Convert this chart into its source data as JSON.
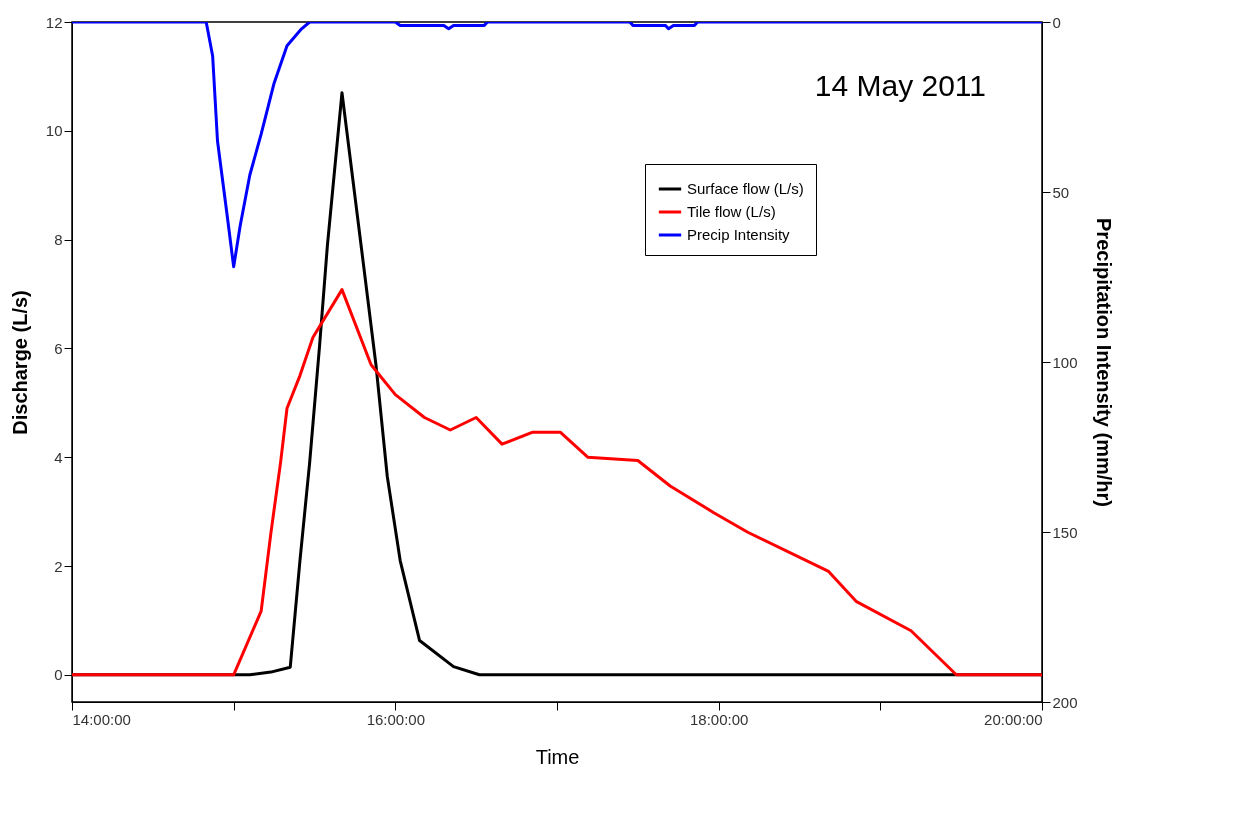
{
  "chart_data": {
    "type": "line",
    "xlabel": "Time",
    "ylabel": "Discharge (L/s)",
    "y2label": "Precipitation Intensity (mm/hr)",
    "annotations": [
      "14 May 2011"
    ],
    "xlim": [
      14,
      20
    ],
    "xticks": [
      {
        "value": 14,
        "label": "14:00:00"
      },
      {
        "value": 15,
        "label": null
      },
      {
        "value": 16,
        "label": "16:00:00"
      },
      {
        "value": 17,
        "label": null
      },
      {
        "value": 18,
        "label": "18:00:00"
      },
      {
        "value": 19,
        "label": null
      },
      {
        "value": 20,
        "label": "20:00:00"
      }
    ],
    "ylim": [
      -0.5,
      12
    ],
    "yticks": [
      0,
      2,
      4,
      6,
      8,
      10,
      12
    ],
    "y2lim": [
      200,
      0
    ],
    "y2ticks": [
      0,
      50,
      100,
      150,
      200
    ],
    "grid": false,
    "legend": "top right",
    "marker": "none",
    "line_style": "solid",
    "series": [
      {
        "name": "Surface flow (L/s)",
        "color": "#000000",
        "x": [
          14,
          15.1,
          15.23,
          15.35,
          15.41,
          15.47,
          15.53,
          15.58,
          15.67,
          15.79,
          15.88,
          15.95,
          16.03,
          16.15,
          16.36,
          16.52,
          20
        ],
        "values": [
          0,
          0,
          0.05,
          0.14,
          2.1,
          3.9,
          6.0,
          7.9,
          10.7,
          7.85,
          5.7,
          3.65,
          2.1,
          0.63,
          0.15,
          0,
          0
        ]
      },
      {
        "name": "Tile flow (L/s)",
        "color": "#ff0000",
        "x": [
          14,
          15.0,
          15.17,
          15.23,
          15.29,
          15.33,
          15.41,
          15.49,
          15.67,
          15.85,
          16.0,
          16.18,
          16.34,
          16.5,
          16.66,
          16.85,
          17.02,
          17.19,
          17.5,
          17.7,
          17.97,
          18.18,
          18.68,
          18.85,
          19.19,
          19.47,
          20
        ],
        "values": [
          0,
          0,
          1.17,
          2.6,
          3.9,
          4.9,
          5.5,
          6.2,
          7.08,
          5.7,
          5.15,
          4.73,
          4.5,
          4.73,
          4.24,
          4.46,
          4.46,
          4.0,
          3.94,
          3.47,
          2.98,
          2.62,
          1.9,
          1.35,
          0.81,
          0,
          0
        ]
      },
      {
        "name": "Precip Intensity",
        "color": "#0000ff",
        "axis": "y2",
        "x": [
          14,
          14.83,
          14.87,
          14.9,
          14.96,
          15.0,
          15.04,
          15.1,
          15.17,
          15.25,
          15.33,
          15.42,
          15.47,
          16.0,
          16.03,
          16.3,
          16.33,
          16.36,
          16.55,
          16.57,
          17.45,
          17.47,
          17.67,
          17.69,
          17.72,
          17.85,
          17.87,
          20
        ],
        "values": [
          0,
          0,
          10,
          35,
          57,
          72,
          60,
          45,
          33,
          18,
          7,
          2,
          0,
          0,
          1,
          1,
          2,
          1,
          1,
          0,
          0,
          1,
          1,
          2,
          1,
          1,
          0,
          0
        ]
      }
    ]
  }
}
